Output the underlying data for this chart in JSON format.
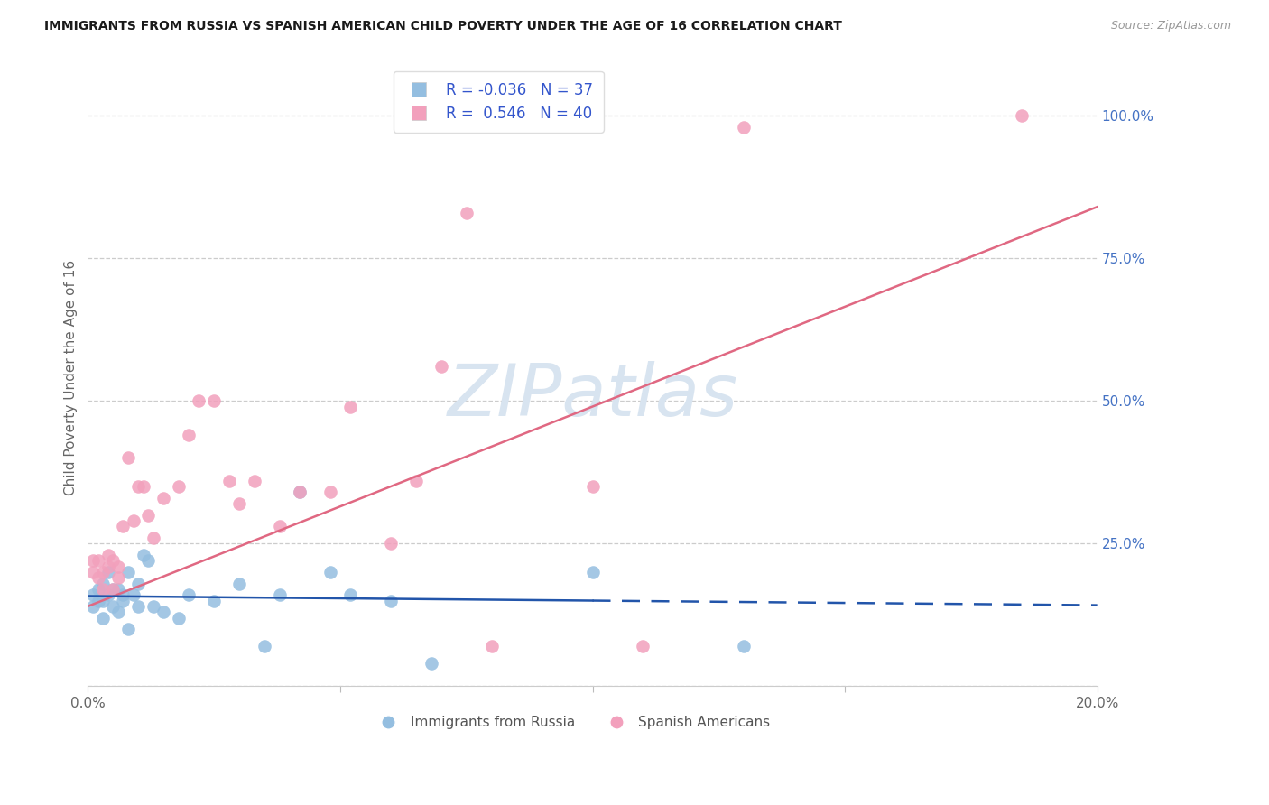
{
  "title": "IMMIGRANTS FROM RUSSIA VS SPANISH AMERICAN CHILD POVERTY UNDER THE AGE OF 16 CORRELATION CHART",
  "source": "Source: ZipAtlas.com",
  "ylabel": "Child Poverty Under the Age of 16",
  "xlim": [
    0.0,
    0.2
  ],
  "ylim": [
    0.0,
    1.08
  ],
  "blue_scatter_x": [
    0.001,
    0.001,
    0.002,
    0.002,
    0.003,
    0.003,
    0.003,
    0.004,
    0.004,
    0.005,
    0.005,
    0.006,
    0.006,
    0.007,
    0.007,
    0.008,
    0.008,
    0.009,
    0.01,
    0.01,
    0.011,
    0.012,
    0.013,
    0.015,
    0.018,
    0.02,
    0.025,
    0.03,
    0.035,
    0.038,
    0.042,
    0.048,
    0.052,
    0.06,
    0.068,
    0.1,
    0.13
  ],
  "blue_scatter_y": [
    0.16,
    0.14,
    0.17,
    0.15,
    0.18,
    0.15,
    0.12,
    0.16,
    0.2,
    0.17,
    0.14,
    0.17,
    0.13,
    0.16,
    0.15,
    0.1,
    0.2,
    0.16,
    0.14,
    0.18,
    0.23,
    0.22,
    0.14,
    0.13,
    0.12,
    0.16,
    0.15,
    0.18,
    0.07,
    0.16,
    0.34,
    0.2,
    0.16,
    0.15,
    0.04,
    0.2,
    0.07
  ],
  "pink_scatter_x": [
    0.001,
    0.001,
    0.002,
    0.002,
    0.003,
    0.003,
    0.004,
    0.004,
    0.005,
    0.005,
    0.006,
    0.006,
    0.007,
    0.008,
    0.009,
    0.01,
    0.011,
    0.012,
    0.013,
    0.015,
    0.018,
    0.02,
    0.022,
    0.025,
    0.028,
    0.03,
    0.033,
    0.038,
    0.042,
    0.048,
    0.052,
    0.06,
    0.065,
    0.07,
    0.075,
    0.08,
    0.1,
    0.11,
    0.13,
    0.185
  ],
  "pink_scatter_y": [
    0.2,
    0.22,
    0.19,
    0.22,
    0.2,
    0.17,
    0.21,
    0.23,
    0.17,
    0.22,
    0.21,
    0.19,
    0.28,
    0.4,
    0.29,
    0.35,
    0.35,
    0.3,
    0.26,
    0.33,
    0.35,
    0.44,
    0.5,
    0.5,
    0.36,
    0.32,
    0.36,
    0.28,
    0.34,
    0.34,
    0.49,
    0.25,
    0.36,
    0.56,
    0.83,
    0.07,
    0.35,
    0.07,
    0.98,
    1.0
  ],
  "blue_R": -0.036,
  "blue_N": 37,
  "pink_R": 0.546,
  "pink_N": 40,
  "blue_dot_color": "#94BEE0",
  "pink_dot_color": "#F2A0BC",
  "blue_line_color": "#2255AA",
  "pink_line_color": "#E06882",
  "watermark_text": "ZIPatlas",
  "watermark_color": "#D8E4F0",
  "bg_color": "#FFFFFF",
  "grid_color": "#CCCCCC",
  "title_color": "#1A1A1A",
  "label_color": "#666666",
  "right_axis_color": "#4472C4",
  "legend_text_color": "#3355CC"
}
